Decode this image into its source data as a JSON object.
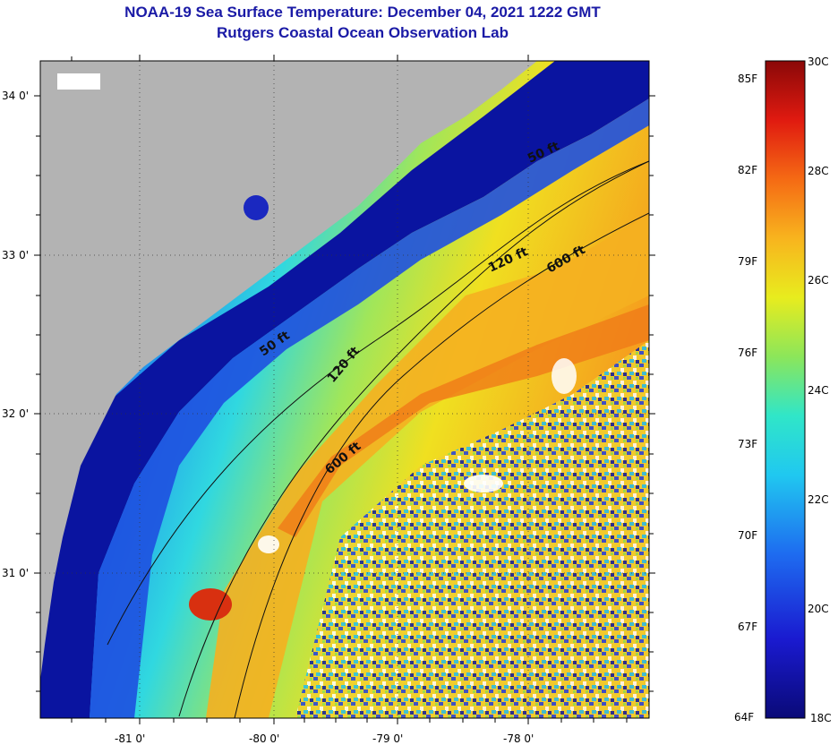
{
  "title": "NOAA-19 Sea Surface Temperature:  December 04, 2021 1222 GMT",
  "subtitle": "Rutgers Coastal Ocean Observation Lab",
  "map": {
    "x_ticks": [
      "-81 0'",
      "-80 0'",
      "-79 0'",
      "-78 0'"
    ],
    "y_ticks": [
      "34 0'",
      "33 0'",
      "32 0'",
      "31 0'"
    ],
    "contour_labels": [
      "50 ft",
      "120 ft",
      "600 ft",
      "50 ft",
      "120 ft",
      "600 ft"
    ],
    "colors": {
      "land": "#b3b3b3",
      "deep_blue": "#0a0a8c",
      "coastal_blue": "#1e3cd8",
      "cyan": "#20d8e6",
      "green": "#9ee65a",
      "yellow": "#f5e81e",
      "orange": "#f5a01e",
      "red": "#e03a10",
      "cloud": "#ffffff"
    }
  },
  "colorbar": {
    "fahrenheit": [
      "85F",
      "82F",
      "79F",
      "76F",
      "73F",
      "70F",
      "67F",
      "64F"
    ],
    "celsius": [
      "30C",
      "28C",
      "26C",
      "24C",
      "22C",
      "20C",
      "18C"
    ],
    "range_c": [
      18,
      30
    ],
    "range_f": [
      64,
      86
    ]
  }
}
